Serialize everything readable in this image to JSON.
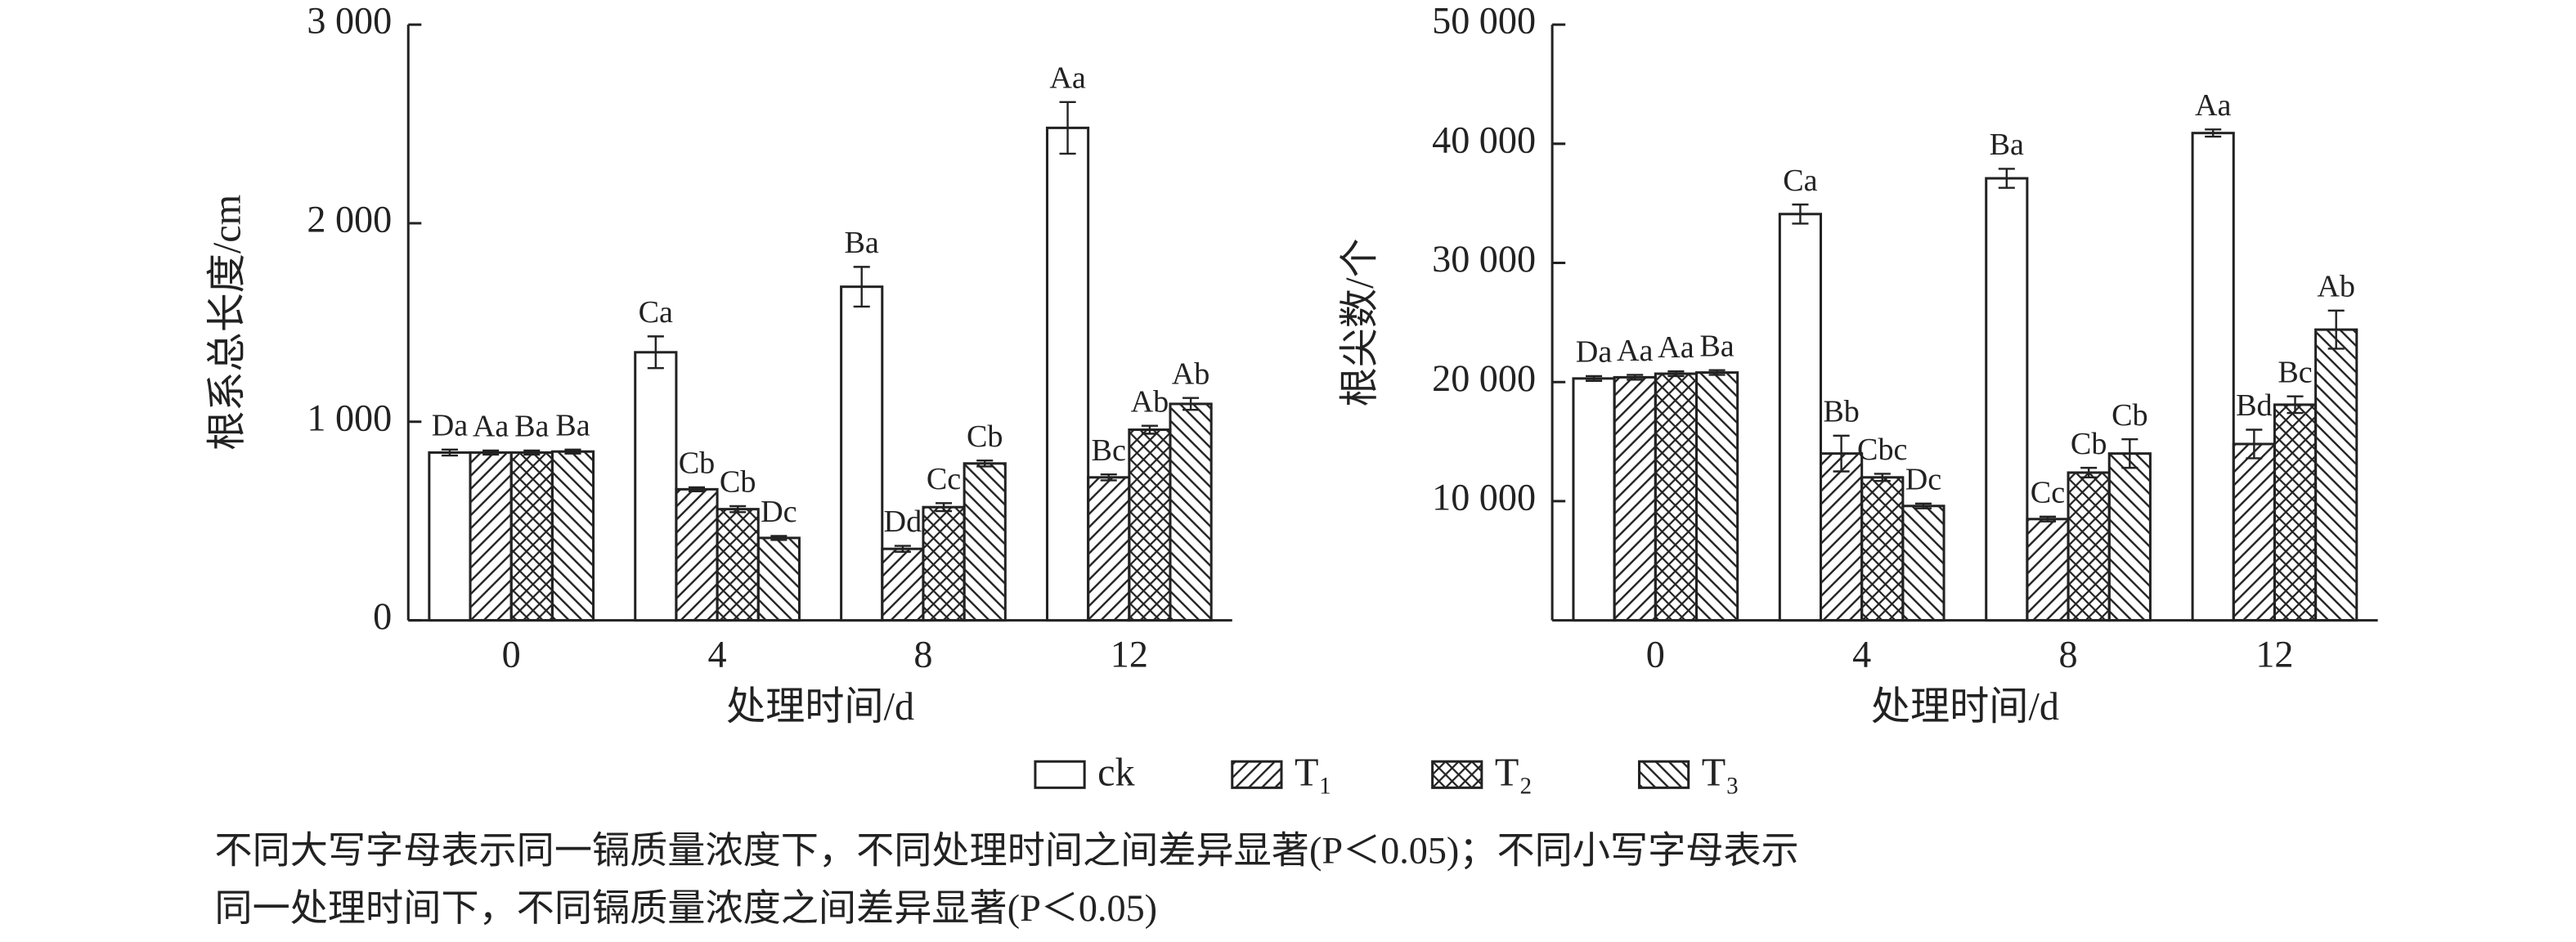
{
  "chart_data": [
    {
      "type": "bar",
      "y_label": "根系总长度/cm",
      "x_label": "处理时间/d",
      "categories": [
        "0",
        "4",
        "8",
        "12"
      ],
      "ylim": [
        0,
        3000
      ],
      "yticks": [
        0,
        {
          "value": 1000,
          "label": "1 000"
        },
        {
          "value": 2000,
          "label": "2 000"
        },
        {
          "value": 3000,
          "label": "3 000"
        }
      ],
      "series": [
        {
          "name": "ck",
          "hatch": "none",
          "color": "#222222",
          "values": [
            845,
            1350,
            1680,
            2480
          ],
          "errors": [
            15,
            80,
            100,
            130
          ],
          "value_labels": [
            "Da",
            "Ca",
            "Ba",
            "Aa"
          ]
        },
        {
          "name": "T₁",
          "hatch": "/",
          "color": "#222222",
          "values": [
            845,
            660,
            360,
            720
          ],
          "errors": [
            10,
            10,
            15,
            15
          ],
          "value_labels": [
            "Aa",
            "Cb",
            "Dd",
            "Bc"
          ]
        },
        {
          "name": "T₂",
          "hatch": "x",
          "color": "#222222",
          "values": [
            845,
            560,
            570,
            960
          ],
          "errors": [
            10,
            15,
            20,
            20
          ],
          "value_labels": [
            "Ba",
            "Cb",
            "Cc",
            "Ab"
          ]
        },
        {
          "name": "T₃",
          "hatch": "\\",
          "color": "#222222",
          "values": [
            850,
            415,
            790,
            1090
          ],
          "errors": [
            10,
            10,
            15,
            30
          ],
          "value_labels": [
            "Ba",
            "Dc",
            "Cb",
            "Ab"
          ]
        }
      ]
    },
    {
      "type": "bar",
      "y_label": "根尖数/个",
      "x_label": "处理时间/d",
      "categories": [
        "0",
        "4",
        "8",
        "12"
      ],
      "ylim": [
        0,
        50000
      ],
      "yticks": [
        {
          "value": 10000,
          "label": "10 000"
        },
        {
          "value": 20000,
          "label": "20 000"
        },
        {
          "value": 30000,
          "label": "30 000"
        },
        {
          "value": 40000,
          "label": "40 000"
        },
        {
          "value": 50000,
          "label": "50 000"
        }
      ],
      "series": [
        {
          "hatch": "none",
          "color": "#222222",
          "values": [
            20300,
            34100,
            37100,
            40900
          ],
          "errors": [
            200,
            800,
            800,
            300
          ],
          "value_labels": [
            "Da",
            "Ca",
            "Ba",
            "Aa"
          ]
        },
        {
          "hatch": "/",
          "color": "#222222",
          "values": [
            20400,
            14000,
            8500,
            14800
          ],
          "errors": [
            200,
            1500,
            200,
            1200
          ],
          "value_labels": [
            "Aa",
            "Bb",
            "Cc",
            "Bd"
          ]
        },
        {
          "hatch": "x",
          "color": "#222222",
          "values": [
            20700,
            12000,
            12400,
            18100
          ],
          "errors": [
            200,
            300,
            400,
            700
          ],
          "value_labels": [
            "Aa",
            "Cbc",
            "Cb",
            "Bc"
          ]
        },
        {
          "hatch": "\\",
          "color": "#222222",
          "values": [
            20800,
            9600,
            14000,
            24400
          ],
          "errors": [
            200,
            200,
            1200,
            1600
          ],
          "value_labels": [
            "Ba",
            "Dc",
            "Cb",
            "Ab"
          ]
        }
      ]
    }
  ],
  "footnote": [
    "不同大写字母表示同一镉质量浓度下，不同处理时间之间差异显著(P＜0.05)；不同小写字母表示",
    "同一处理时间下，不同镉质量浓度之间差异显著(P＜0.05)"
  ]
}
